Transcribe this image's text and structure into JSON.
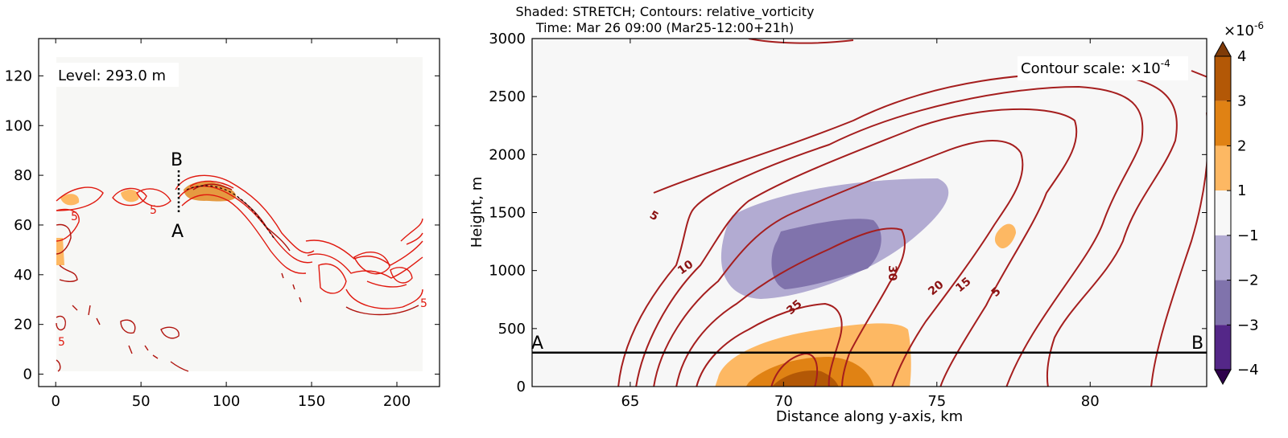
{
  "chart_data": [
    {
      "type": "contour-map",
      "xlim": [
        -10,
        225
      ],
      "ylim": [
        -5,
        135
      ],
      "xticks": [
        0,
        50,
        100,
        150,
        200
      ],
      "yticks": [
        0,
        20,
        40,
        60,
        80,
        100,
        120
      ],
      "level_label": "Level: 293.0 m",
      "contour_labels": [
        "5",
        "5",
        "5",
        "5"
      ],
      "section_line": {
        "start_label": "A",
        "end_label": "B",
        "x": 73,
        "y_from": 65,
        "y_to": 82
      }
    },
    {
      "type": "contour-cross-section",
      "title": "Shaded: STRETCH; Contours: relative_vorticity",
      "subtitle": "Time: Mar 26 09:00 (Mar25-12:00+21h)",
      "xlabel": "Distance along y-axis, km",
      "ylabel": "Height, m",
      "xlim": [
        61.8,
        83.8
      ],
      "ylim": [
        0,
        3000
      ],
      "xticks": [
        65,
        70,
        75,
        80
      ],
      "yticks": [
        0,
        500,
        1000,
        1500,
        2000,
        2500,
        3000
      ],
      "contour_scale_prefix": "Contour scale: ×10",
      "contour_scale_exp": "-4",
      "contour_levels": [
        "5",
        "10",
        "15",
        "20",
        "30",
        "35"
      ],
      "level_line": {
        "height": 293,
        "left_label": "A",
        "right_label": "B"
      },
      "colorbar": {
        "title_prefix": "×10",
        "title_exp": "-6",
        "tick_labels": [
          "4",
          "3",
          "2",
          "1",
          "−1",
          "−2",
          "−3",
          "−4"
        ],
        "colors": [
          "#7f3b08",
          "#b35806",
          "#e08214",
          "#fdb863",
          "#f7f7f7",
          "#b2abd2",
          "#8073ac",
          "#542788",
          "#2d004b"
        ]
      }
    }
  ]
}
